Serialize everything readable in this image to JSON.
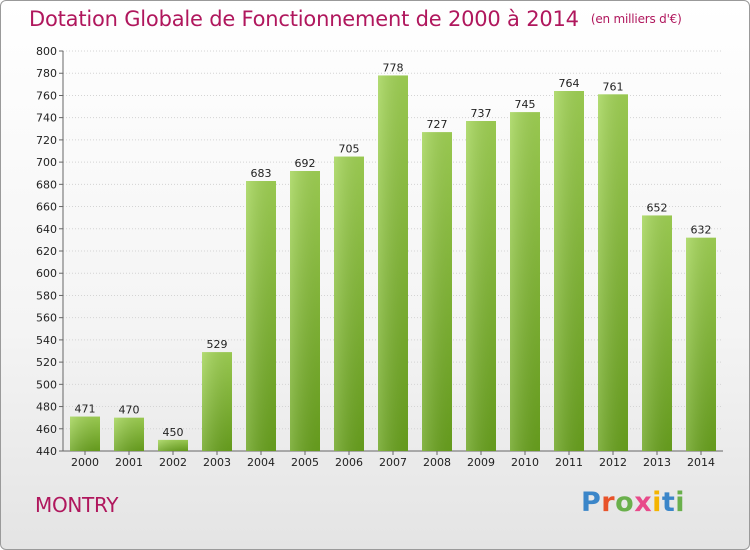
{
  "title": "Dotation Globale de Fonctionnement de 2000 à 2014",
  "unit_note": "(en milliers d'€)",
  "commune": "MONTRY",
  "logo": {
    "letters": [
      "P",
      "r",
      "o",
      "x",
      "i",
      "t",
      "i"
    ],
    "colors": [
      "#3b86c9",
      "#e8532a",
      "#6ab04c",
      "#e84a8a",
      "#f4b400",
      "#3b86c9",
      "#6ab04c"
    ]
  },
  "colors": {
    "title": "#b0175d",
    "bar_light": "#a2d455",
    "bar_dark": "#6aa31e"
  },
  "chart_data": {
    "type": "bar",
    "categories": [
      "2000",
      "2001",
      "2002",
      "2003",
      "2004",
      "2005",
      "2006",
      "2007",
      "2008",
      "2009",
      "2010",
      "2011",
      "2012",
      "2013",
      "2014"
    ],
    "values": [
      471,
      470,
      450,
      529,
      683,
      692,
      705,
      778,
      727,
      737,
      745,
      764,
      761,
      652,
      632
    ],
    "title": "Dotation Globale de Fonctionnement de 2000 à 2014",
    "xlabel": "",
    "ylabel": "",
    "ylim": [
      440,
      800
    ],
    "yticks": [
      440,
      460,
      480,
      500,
      520,
      540,
      560,
      580,
      600,
      620,
      640,
      660,
      680,
      700,
      720,
      740,
      760,
      780,
      800
    ],
    "grid": true,
    "data_labels": true
  }
}
